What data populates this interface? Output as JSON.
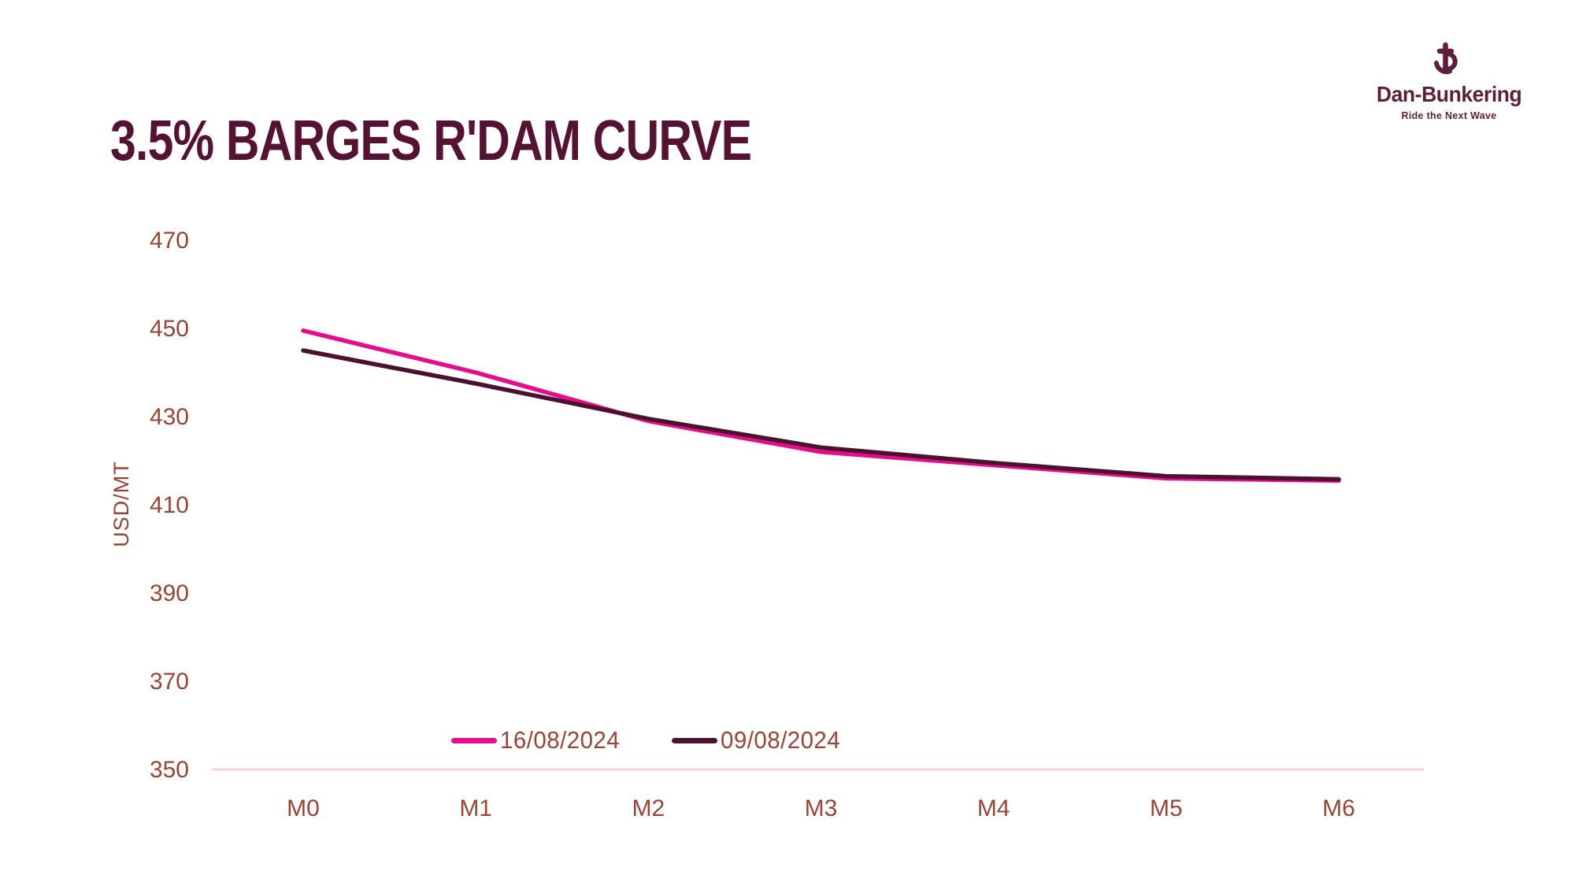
{
  "logo": {
    "brand": "Dan-Bunkering",
    "tagline": "Ride the Next Wave",
    "color": "#5E1F3D"
  },
  "colors": {
    "background": "#FFFFFF",
    "title": "#561233",
    "axis_text": "#9A4434",
    "axis_line": "#F6CEDE"
  },
  "chart_data": {
    "type": "line",
    "title": "3.5% BARGES R'DAM CURVE",
    "xlabel": "",
    "ylabel": "USD/MT",
    "categories": [
      "M0",
      "M1",
      "M2",
      "M3",
      "M4",
      "M5",
      "M6"
    ],
    "series": [
      {
        "name": "16/08/2024",
        "color": "#E60C8B",
        "values": [
          449.5,
          440.0,
          429.0,
          422.0,
          419.0,
          416.0,
          415.5
        ]
      },
      {
        "name": "09/08/2024",
        "color": "#4D1130",
        "values": [
          445.0,
          437.5,
          429.5,
          423.0,
          419.5,
          416.5,
          415.8
        ]
      }
    ],
    "ylim": [
      350,
      470
    ],
    "yticks": [
      350,
      370,
      390,
      410,
      430,
      450,
      470
    ],
    "grid": false,
    "legend_position": "bottom"
  }
}
